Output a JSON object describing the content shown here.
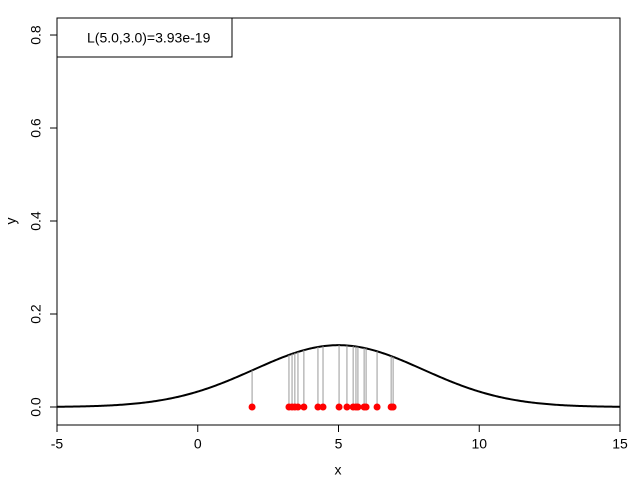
{
  "chart_data": {
    "type": "likelihood",
    "xlabel": "x",
    "ylabel": "y",
    "legend": "L(5.0,3.0)=3.93e-19",
    "curve": {
      "mean": 5,
      "sd": 3,
      "color": "#000000"
    },
    "points": {
      "color": "#ff0000",
      "x": [
        1.93,
        3.24,
        3.35,
        3.45,
        3.56,
        3.77,
        4.27,
        4.45,
        5.02,
        5.3,
        5.52,
        5.62,
        5.69,
        5.91,
        5.98,
        6.37,
        6.87,
        6.94
      ],
      "values": [
        0,
        0,
        0,
        0,
        0,
        0,
        0,
        0,
        0,
        0,
        0,
        0,
        0,
        0,
        0,
        0,
        0,
        0
      ]
    },
    "xlim": [
      -5,
      15
    ],
    "ylim": [
      -0.0387,
      0.8366
    ],
    "xticks": [
      -5,
      0,
      5,
      10,
      15
    ],
    "yticks": [
      {
        "value": 0,
        "label": "0.0"
      },
      0.2,
      0.4,
      0.6,
      0.8
    ]
  }
}
